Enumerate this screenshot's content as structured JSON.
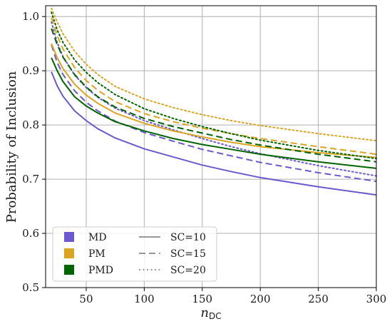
{
  "chart_data": {
    "type": "line",
    "title": "",
    "xlabel": "n",
    "xlabel_subscript": "DC",
    "ylabel": "Probability of Inclusion",
    "xlim": [
      15,
      300
    ],
    "ylim": [
      0.5,
      1.02
    ],
    "xticks": [
      50,
      100,
      150,
      200,
      250,
      300
    ],
    "yticks": [
      0.5,
      0.6,
      0.7,
      0.8,
      0.9,
      1.0
    ],
    "xtick_labels": [
      "50",
      "100",
      "150",
      "200",
      "250",
      "300"
    ],
    "ytick_labels": [
      "0.5",
      "0.6",
      "0.7",
      "0.8",
      "0.9",
      "1.0"
    ],
    "grid": true,
    "x": [
      20,
      25,
      30,
      40,
      50,
      60,
      75,
      100,
      125,
      150,
      175,
      200,
      250,
      300
    ],
    "groups": [
      {
        "name": "MD",
        "color": "#6a5acd"
      },
      {
        "name": "PM",
        "color": "#daa520"
      },
      {
        "name": "PMD",
        "color": "#006400"
      }
    ],
    "styles": [
      {
        "name": "SC=10",
        "dash": "solid"
      },
      {
        "name": "SC=15",
        "dash": "dashed"
      },
      {
        "name": "SC=20",
        "dash": "dotted"
      }
    ],
    "series": [
      {
        "group": 0,
        "style": 0,
        "values": [
          0.898,
          0.872,
          0.853,
          0.826,
          0.808,
          0.793,
          0.776,
          0.756,
          0.741,
          0.726,
          0.714,
          0.703,
          0.686,
          0.671
        ]
      },
      {
        "group": 0,
        "style": 1,
        "values": [
          0.948,
          0.915,
          0.893,
          0.863,
          0.842,
          0.826,
          0.807,
          0.786,
          0.77,
          0.755,
          0.743,
          0.731,
          0.712,
          0.696
        ]
      },
      {
        "group": 0,
        "style": 2,
        "values": [
          0.99,
          0.952,
          0.926,
          0.892,
          0.869,
          0.851,
          0.831,
          0.808,
          0.791,
          0.775,
          0.76,
          0.747,
          0.725,
          0.706
        ]
      },
      {
        "group": 1,
        "style": 0,
        "values": [
          0.95,
          0.924,
          0.904,
          0.875,
          0.855,
          0.84,
          0.822,
          0.803,
          0.789,
          0.778,
          0.768,
          0.76,
          0.749,
          0.74
        ]
      },
      {
        "group": 1,
        "style": 1,
        "values": [
          0.998,
          0.965,
          0.94,
          0.906,
          0.882,
          0.864,
          0.843,
          0.821,
          0.806,
          0.794,
          0.784,
          0.775,
          0.76,
          0.746
        ]
      },
      {
        "group": 1,
        "style": 2,
        "values": [
          1.015,
          0.99,
          0.968,
          0.936,
          0.912,
          0.893,
          0.871,
          0.848,
          0.832,
          0.819,
          0.808,
          0.799,
          0.784,
          0.771
        ]
      },
      {
        "group": 2,
        "style": 0,
        "values": [
          0.924,
          0.9,
          0.88,
          0.852,
          0.835,
          0.822,
          0.806,
          0.789,
          0.775,
          0.764,
          0.755,
          0.746,
          0.732,
          0.72
        ]
      },
      {
        "group": 2,
        "style": 1,
        "values": [
          0.978,
          0.948,
          0.925,
          0.893,
          0.87,
          0.852,
          0.833,
          0.812,
          0.797,
          0.785,
          0.773,
          0.763,
          0.746,
          0.732
        ]
      },
      {
        "group": 2,
        "style": 2,
        "values": [
          1.008,
          0.975,
          0.952,
          0.92,
          0.897,
          0.878,
          0.856,
          0.83,
          0.812,
          0.797,
          0.784,
          0.772,
          0.753,
          0.738
        ]
      }
    ],
    "legend_position": "lower-left"
  }
}
